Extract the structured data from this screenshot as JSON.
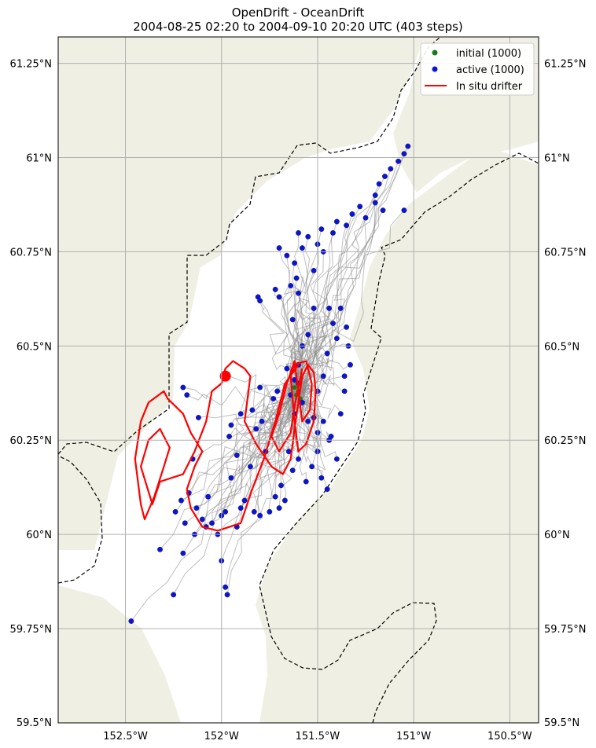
{
  "title": {
    "line1": "OpenDrift - OceanDrift",
    "line2": "2004-08-25 02:20 to 2004-09-10 20:20 UTC (403 steps)"
  },
  "colors": {
    "land": "#efefe3",
    "sea": "#ffffff",
    "grid": "#b0b0b0",
    "trajectory": "#8a8a8a",
    "initial": "#1a7a1a",
    "active": "#0a14d8",
    "drifter": "#ff0000",
    "boundary": "#000000"
  },
  "chart_data": {
    "type": "scatter",
    "xlabel": "",
    "ylabel": "",
    "xlim": [
      -152.85,
      -150.35
    ],
    "ylim": [
      59.5,
      61.32
    ],
    "grid": true,
    "legend_position": "top-right",
    "x_ticks": [
      -152.5,
      -152.0,
      -151.5,
      -151.0,
      -150.5
    ],
    "x_tick_labels": [
      "152.5°W",
      "152°W",
      "151.5°W",
      "151°W",
      "150.5°W"
    ],
    "y_ticks": [
      59.5,
      59.75,
      60.0,
      60.25,
      60.5,
      60.75,
      61.0,
      61.25
    ],
    "y_tick_labels": [
      "59.5°N",
      "59.75°N",
      "60°N",
      "60.25°N",
      "60.5°N",
      "60.75°N",
      "61°N",
      "61.25°N"
    ],
    "legend": [
      {
        "label": "initial (1000)",
        "marker": "dot",
        "color": "#1a7a1a"
      },
      {
        "label": "active (1000)",
        "marker": "dot",
        "color": "#0a14d8"
      },
      {
        "label": "In situ drifter",
        "marker": "line",
        "color": "#ff0000"
      }
    ],
    "series": [
      {
        "name": "active (1000)",
        "points": [
          [
            -152.47,
            59.77
          ],
          [
            -152.32,
            59.96
          ],
          [
            -152.25,
            59.84
          ],
          [
            -152.2,
            59.95
          ],
          [
            -152.14,
            60.0
          ],
          [
            -152.19,
            60.03
          ],
          [
            -152.21,
            60.09
          ],
          [
            -152.24,
            60.06
          ],
          [
            -152.17,
            60.11
          ],
          [
            -152.13,
            60.07
          ],
          [
            -152.1,
            60.04
          ],
          [
            -152.07,
            60.1
          ],
          [
            -152.15,
            60.2
          ],
          [
            -152.12,
            60.31
          ],
          [
            -152.18,
            60.37
          ],
          [
            -152.2,
            60.39
          ],
          [
            -152.0,
            59.93
          ],
          [
            -151.98,
            59.86
          ],
          [
            -151.97,
            59.84
          ],
          [
            -151.98,
            60.06
          ],
          [
            -151.95,
            60.15
          ],
          [
            -151.92,
            60.21
          ],
          [
            -151.96,
            60.26
          ],
          [
            -151.95,
            60.29
          ],
          [
            -151.9,
            60.32
          ],
          [
            -151.88,
            60.09
          ],
          [
            -151.85,
            60.18
          ],
          [
            -151.82,
            60.28
          ],
          [
            -151.84,
            60.33
          ],
          [
            -151.8,
            60.39
          ],
          [
            -151.79,
            60.3
          ],
          [
            -151.73,
            60.36
          ],
          [
            -151.71,
            60.38
          ],
          [
            -151.77,
            60.22
          ],
          [
            -151.72,
            60.1
          ],
          [
            -151.69,
            60.13
          ],
          [
            -151.65,
            60.22
          ],
          [
            -151.62,
            60.32
          ],
          [
            -151.66,
            60.44
          ],
          [
            -151.6,
            60.45
          ],
          [
            -151.58,
            60.5
          ],
          [
            -151.55,
            60.53
          ],
          [
            -151.63,
            60.57
          ],
          [
            -151.6,
            60.64
          ],
          [
            -151.64,
            60.66
          ],
          [
            -151.62,
            60.72
          ],
          [
            -151.7,
            60.63
          ],
          [
            -151.72,
            60.65
          ],
          [
            -151.8,
            60.62
          ],
          [
            -151.81,
            60.63
          ],
          [
            -151.52,
            60.7
          ],
          [
            -151.5,
            60.77
          ],
          [
            -151.47,
            60.75
          ],
          [
            -151.44,
            60.6
          ],
          [
            -151.42,
            60.56
          ],
          [
            -151.4,
            60.52
          ],
          [
            -151.45,
            60.48
          ],
          [
            -151.47,
            60.42
          ],
          [
            -151.5,
            60.38
          ],
          [
            -151.47,
            60.3
          ],
          [
            -151.44,
            60.25
          ],
          [
            -151.5,
            60.22
          ],
          [
            -151.53,
            60.18
          ],
          [
            -151.56,
            60.14
          ],
          [
            -151.48,
            60.15
          ],
          [
            -151.45,
            60.12
          ],
          [
            -151.4,
            60.2
          ],
          [
            -151.43,
            60.26
          ],
          [
            -151.5,
            60.27
          ],
          [
            -151.36,
            60.42
          ],
          [
            -151.33,
            60.45
          ],
          [
            -151.35,
            60.55
          ],
          [
            -151.42,
            60.8
          ],
          [
            -151.4,
            60.83
          ],
          [
            -151.35,
            60.82
          ],
          [
            -151.32,
            60.85
          ],
          [
            -151.28,
            60.87
          ],
          [
            -151.25,
            60.84
          ],
          [
            -151.2,
            60.9
          ],
          [
            -151.18,
            60.93
          ],
          [
            -151.15,
            60.95
          ],
          [
            -151.12,
            60.97
          ],
          [
            -151.08,
            60.99
          ],
          [
            -151.05,
            61.01
          ],
          [
            -151.03,
            61.03
          ],
          [
            -151.2,
            60.88
          ],
          [
            -151.16,
            60.86
          ],
          [
            -151.05,
            60.86
          ],
          [
            -151.48,
            60.81
          ],
          [
            -151.55,
            60.79
          ],
          [
            -151.6,
            60.8
          ],
          [
            -151.58,
            60.76
          ],
          [
            -151.66,
            60.74
          ],
          [
            -151.7,
            60.76
          ],
          [
            -151.61,
            60.68
          ],
          [
            -151.52,
            60.6
          ],
          [
            -151.6,
            60.4
          ],
          [
            -151.62,
            60.41
          ],
          [
            -151.64,
            60.37
          ],
          [
            -151.58,
            60.35
          ],
          [
            -151.55,
            60.3
          ],
          [
            -151.52,
            60.31
          ],
          [
            -151.6,
            60.2
          ],
          [
            -151.63,
            60.17
          ],
          [
            -151.67,
            60.09
          ],
          [
            -151.7,
            60.07
          ],
          [
            -151.75,
            60.06
          ],
          [
            -151.8,
            60.05
          ],
          [
            -151.83,
            60.06
          ],
          [
            -151.9,
            60.07
          ],
          [
            -152.0,
            60.05
          ],
          [
            -152.05,
            60.03
          ],
          [
            -152.08,
            60.02
          ],
          [
            -152.02,
            60.0
          ],
          [
            -151.92,
            60.02
          ],
          [
            -151.38,
            60.32
          ],
          [
            -151.36,
            60.38
          ],
          [
            -151.34,
            60.5
          ],
          [
            -151.38,
            60.6
          ]
        ]
      },
      {
        "name": "initial (1000)",
        "points": [
          [
            -151.6,
            60.38
          ],
          [
            -151.61,
            60.37
          ],
          [
            -151.59,
            60.36
          ],
          [
            -151.62,
            60.39
          ]
        ]
      },
      {
        "name": "In situ drifter",
        "points": [
          [
            -151.6,
            60.45
          ],
          [
            -151.67,
            60.4
          ],
          [
            -151.72,
            60.3
          ],
          [
            -151.78,
            60.2
          ],
          [
            -151.84,
            60.12
          ],
          [
            -151.88,
            60.06
          ],
          [
            -151.9,
            60.03
          ],
          [
            -152.02,
            60.01
          ],
          [
            -152.1,
            60.02
          ],
          [
            -152.16,
            60.07
          ],
          [
            -152.18,
            60.12
          ],
          [
            -152.14,
            60.18
          ],
          [
            -152.1,
            60.22
          ],
          [
            -152.16,
            60.27
          ],
          [
            -152.2,
            60.32
          ],
          [
            -152.28,
            60.36
          ],
          [
            -152.3,
            60.38
          ],
          [
            -152.38,
            60.35
          ],
          [
            -152.42,
            60.3
          ],
          [
            -152.45,
            60.2
          ],
          [
            -152.42,
            60.08
          ],
          [
            -152.4,
            60.04
          ],
          [
            -152.35,
            60.1
          ],
          [
            -152.3,
            60.18
          ],
          [
            -152.27,
            60.23
          ],
          [
            -152.32,
            60.28
          ],
          [
            -152.38,
            60.25
          ],
          [
            -152.42,
            60.18
          ],
          [
            -152.36,
            60.08
          ],
          [
            -152.32,
            60.14
          ],
          [
            -152.2,
            60.16
          ],
          [
            -152.14,
            60.22
          ],
          [
            -152.08,
            60.3
          ],
          [
            -152.05,
            60.38
          ],
          [
            -152.0,
            60.4
          ],
          [
            -151.98,
            60.44
          ],
          [
            -151.94,
            60.46
          ],
          [
            -151.88,
            60.44
          ],
          [
            -151.85,
            60.42
          ],
          [
            -151.86,
            60.38
          ],
          [
            -151.88,
            60.3
          ],
          [
            -151.82,
            60.24
          ],
          [
            -151.74,
            60.18
          ],
          [
            -151.68,
            60.16
          ],
          [
            -151.64,
            60.2
          ],
          [
            -151.62,
            60.28
          ],
          [
            -151.6,
            60.35
          ],
          [
            -151.58,
            60.42
          ],
          [
            -151.55,
            60.45
          ],
          [
            -151.52,
            60.43
          ],
          [
            -151.51,
            60.38
          ],
          [
            -151.52,
            60.3
          ],
          [
            -151.56,
            60.24
          ],
          [
            -151.6,
            60.22
          ],
          [
            -151.62,
            60.3
          ],
          [
            -151.64,
            60.42
          ],
          [
            -151.62,
            60.45
          ],
          [
            -151.56,
            60.46
          ],
          [
            -151.53,
            60.4
          ],
          [
            -151.54,
            60.33
          ],
          [
            -151.58,
            60.3
          ],
          [
            -151.6,
            60.38
          ],
          [
            -151.62,
            60.46
          ],
          [
            -151.66,
            60.4
          ],
          [
            -151.7,
            60.32
          ],
          [
            -151.74,
            60.26
          ],
          [
            -151.7,
            60.22
          ],
          [
            -151.64,
            60.27
          ],
          [
            -151.62,
            60.34
          ],
          [
            -151.58,
            60.44
          ]
        ],
        "end_point": [
          -151.98,
          60.42
        ]
      }
    ]
  }
}
